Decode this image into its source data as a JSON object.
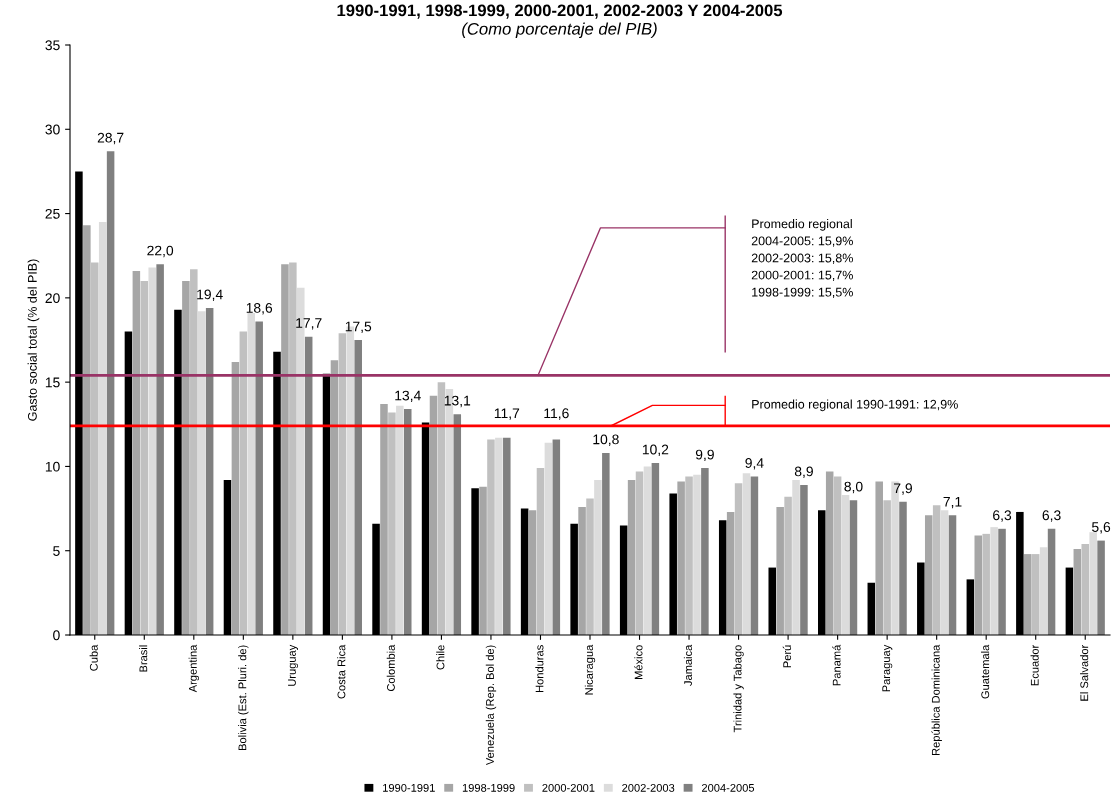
{
  "chart_data": {
    "type": "bar",
    "title": "1990-1991, 1998-1999, 2000-2001, 2002-2003 Y 2004-2005",
    "subtitle": "(Como porcentaje del PIB)",
    "ylabel": "Gasto social total (% del PIB)",
    "categories": [
      "Cuba",
      "Brasil",
      "Argentina",
      "Bolivia (Est. Pluri. de)",
      "Uruguay",
      "Costa Rica",
      "Colombia",
      "Chile",
      "Venezuela (Rep. Bol de)",
      "Honduras",
      "Nicaragua",
      "México",
      "Jamaica",
      "Trinidad y Tabago",
      "Perú",
      "Panamá",
      "Paraguay",
      "República Dominicana",
      "Guatemala",
      "Ecuador",
      "El Salvador"
    ],
    "series": [
      {
        "name": "1990-1991",
        "color": "#000000",
        "values": [
          27.5,
          18.0,
          19.3,
          9.2,
          16.8,
          15.5,
          6.6,
          12.6,
          8.7,
          7.5,
          6.6,
          6.5,
          8.4,
          6.8,
          4.0,
          7.4,
          3.1,
          4.3,
          3.3,
          7.3,
          4.0
        ]
      },
      {
        "name": "1998-1999",
        "color": "#a6a6a6",
        "values": [
          24.3,
          21.6,
          21.0,
          16.2,
          22.0,
          16.3,
          13.7,
          14.2,
          8.8,
          7.4,
          7.6,
          9.2,
          9.1,
          7.3,
          7.6,
          9.7,
          9.1,
          7.1,
          5.9,
          4.8,
          5.1
        ]
      },
      {
        "name": "2000-2001",
        "color": "#c0c0c0",
        "values": [
          22.1,
          21.0,
          21.7,
          18.0,
          22.1,
          17.9,
          13.2,
          15.0,
          11.6,
          9.9,
          8.1,
          9.7,
          9.4,
          9.0,
          8.2,
          9.4,
          8.0,
          7.7,
          6.0,
          4.8,
          5.4
        ]
      },
      {
        "name": "2002-2003",
        "color": "#dcdcdc",
        "values": [
          24.5,
          21.8,
          19.2,
          19.1,
          20.6,
          18.3,
          13.6,
          14.6,
          11.7,
          11.4,
          9.2,
          10.0,
          9.5,
          9.6,
          9.2,
          8.3,
          9.1,
          7.4,
          6.4,
          5.2,
          6.1
        ]
      },
      {
        "name": "2004-2005",
        "color": "#808080",
        "values": [
          28.7,
          22.0,
          19.4,
          18.6,
          17.7,
          17.5,
          13.4,
          13.1,
          11.7,
          11.6,
          10.8,
          10.2,
          9.9,
          9.4,
          8.9,
          8.0,
          7.9,
          7.1,
          6.3,
          6.3,
          5.6
        ],
        "value_labels": [
          "28,7",
          "22,0",
          "19,4",
          "18,6",
          "17,7",
          "17,5",
          "13,4",
          "13,1",
          "11,7",
          "11,6",
          "10,8",
          "10,2",
          "9,9",
          "9,4",
          "8,9",
          "8,0",
          "7,9",
          "7,1",
          "6,3",
          "6,3",
          "5,6"
        ]
      }
    ],
    "ylim": [
      0,
      35
    ],
    "yticks": [
      0,
      5,
      10,
      15,
      20,
      25,
      30,
      35
    ],
    "ref_lines": [
      {
        "axis": "y",
        "value": 15.4,
        "color": "#993366"
      },
      {
        "axis": "y",
        "value": 12.4,
        "color": "#ff0000"
      }
    ],
    "annotations": [
      "Promedio regional\n2004-2005: 15,9%\n2002-2003: 15,8%\n2000-2001: 15,7%\n1998-1999: 15,5%",
      "Promedio regional 1990-1991: 12,9%"
    ],
    "legend": "bottom",
    "grid": false
  }
}
